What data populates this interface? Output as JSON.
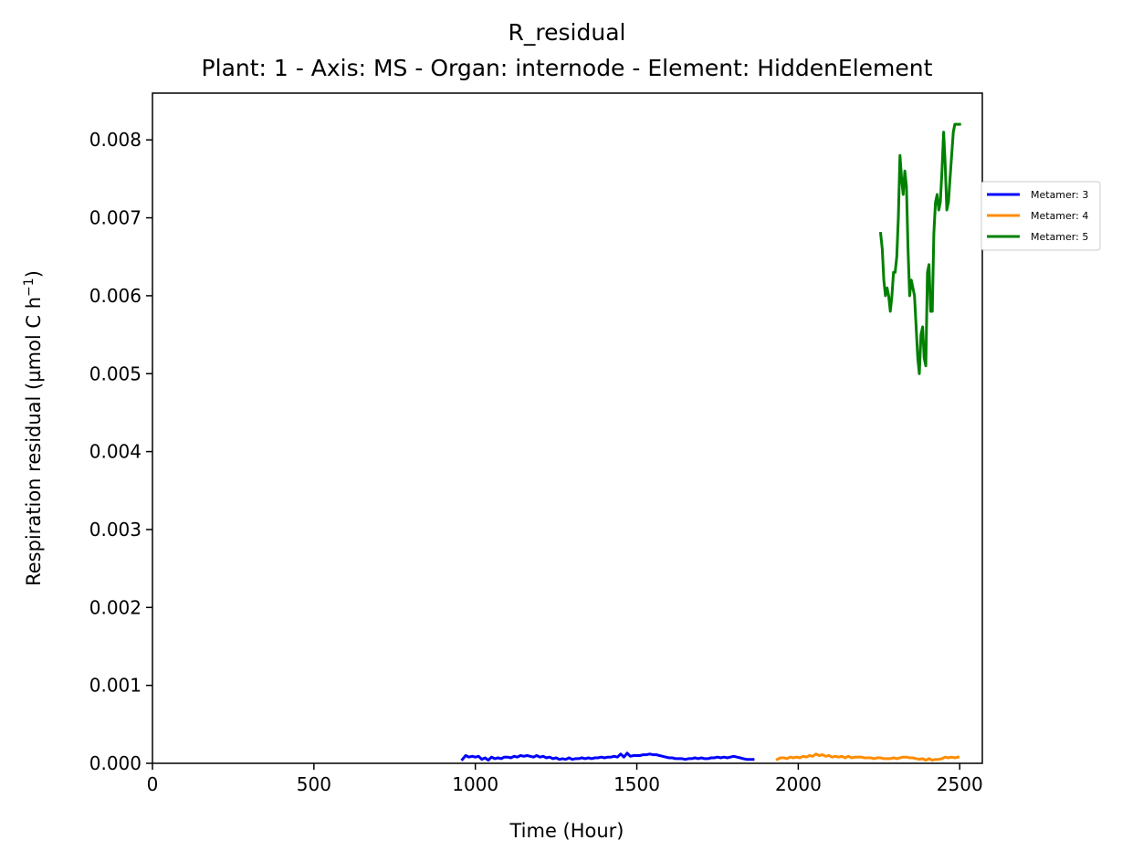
{
  "chart_data": {
    "type": "line",
    "title": "R_residual",
    "subtitle": "Plant: 1 - Axis: MS - Organ: internode - Element: HiddenElement",
    "xlabel": "Time (Hour)",
    "ylabel_main": "Respiration residual (µmol C h",
    "ylabel_sup": "−1",
    "ylabel_end": ")",
    "xlim": [
      0,
      2570
    ],
    "ylim": [
      0,
      0.0086
    ],
    "xticks": [
      0,
      500,
      1000,
      1500,
      2000,
      2500
    ],
    "xtick_labels": [
      "0",
      "500",
      "1000",
      "1500",
      "2000",
      "2500"
    ],
    "yticks": [
      0,
      0.001,
      0.002,
      0.003,
      0.004,
      0.005,
      0.006,
      0.007,
      0.008
    ],
    "ytick_labels": [
      "0.000",
      "0.001",
      "0.002",
      "0.003",
      "0.004",
      "0.005",
      "0.006",
      "0.007",
      "0.008"
    ],
    "grid": false,
    "legend_position": "outside-right",
    "series": [
      {
        "name": "Metamer: 3",
        "color": "#0000ff",
        "x": [
          960,
          970,
          980,
          990,
          1000,
          1010,
          1020,
          1030,
          1040,
          1050,
          1060,
          1070,
          1080,
          1090,
          1100,
          1110,
          1120,
          1130,
          1140,
          1150,
          1160,
          1170,
          1180,
          1190,
          1200,
          1210,
          1220,
          1230,
          1240,
          1250,
          1260,
          1270,
          1280,
          1290,
          1300,
          1310,
          1320,
          1330,
          1340,
          1350,
          1360,
          1370,
          1380,
          1390,
          1400,
          1410,
          1420,
          1430,
          1440,
          1450,
          1460,
          1470,
          1480,
          1490,
          1500,
          1510,
          1520,
          1530,
          1540,
          1550,
          1560,
          1570,
          1580,
          1590,
          1600,
          1610,
          1620,
          1630,
          1640,
          1650,
          1660,
          1670,
          1680,
          1690,
          1700,
          1710,
          1720,
          1730,
          1740,
          1750,
          1760,
          1770,
          1780,
          1790,
          1800,
          1810,
          1820,
          1830,
          1840,
          1850,
          1860
        ],
        "y": [
          5e-05,
          0.0001,
          8e-05,
          9e-05,
          8e-05,
          9e-05,
          5e-05,
          7e-05,
          4e-05,
          8e-05,
          6e-05,
          7e-05,
          6e-05,
          8e-05,
          8e-05,
          7e-05,
          9e-05,
          8e-05,
          0.0001,
          9e-05,
          0.0001,
          9e-05,
          8e-05,
          0.0001,
          8e-05,
          9e-05,
          7e-05,
          8e-05,
          6e-05,
          7e-05,
          5e-05,
          6e-05,
          5e-05,
          7e-05,
          5e-05,
          6e-05,
          6e-05,
          7e-05,
          6e-05,
          7e-05,
          6e-05,
          7e-05,
          7e-05,
          8e-05,
          7e-05,
          8e-05,
          8e-05,
          9e-05,
          8e-05,
          0.00012,
          8e-05,
          0.00013,
          9e-05,
          0.0001,
          0.0001,
          0.0001,
          0.00011,
          0.00011,
          0.00012,
          0.00011,
          0.00011,
          0.0001,
          9e-05,
          8e-05,
          7e-05,
          7e-05,
          6e-05,
          6e-05,
          6e-05,
          5e-05,
          6e-05,
          6e-05,
          7e-05,
          6e-05,
          7e-05,
          6e-05,
          6e-05,
          7e-05,
          7e-05,
          8e-05,
          7e-05,
          8e-05,
          7e-05,
          8e-05,
          9e-05,
          8e-05,
          7e-05,
          6e-05,
          5e-05,
          5e-05,
          5e-05
        ]
      },
      {
        "name": "Metamer: 4",
        "color": "#ff8c00",
        "x": [
          1935,
          1945,
          1955,
          1965,
          1975,
          1985,
          1995,
          2005,
          2015,
          2025,
          2035,
          2045,
          2055,
          2065,
          2075,
          2085,
          2095,
          2105,
          2115,
          2125,
          2135,
          2145,
          2155,
          2165,
          2175,
          2185,
          2195,
          2205,
          2215,
          2225,
          2235,
          2245,
          2255,
          2265,
          2275,
          2285,
          2295,
          2305,
          2315,
          2325,
          2335,
          2345,
          2355,
          2365,
          2375,
          2385,
          2395,
          2405,
          2415,
          2425,
          2435,
          2445,
          2455,
          2465,
          2475,
          2485,
          2495
        ],
        "y": [
          5e-05,
          7e-05,
          7e-05,
          6e-05,
          8e-05,
          7e-05,
          8e-05,
          7e-05,
          9e-05,
          8e-05,
          0.0001,
          9e-05,
          0.00012,
          0.0001,
          0.00011,
          9e-05,
          0.0001,
          8e-05,
          9e-05,
          8e-05,
          9e-05,
          7e-05,
          9e-05,
          7e-05,
          8e-05,
          8e-05,
          8e-05,
          7e-05,
          7e-05,
          7e-05,
          6e-05,
          7e-05,
          7e-05,
          6e-05,
          6e-05,
          6e-05,
          7e-05,
          6e-05,
          7e-05,
          8e-05,
          8e-05,
          7e-05,
          7e-05,
          6e-05,
          5e-05,
          6e-05,
          4e-05,
          6e-05,
          4e-05,
          5e-05,
          5e-05,
          6e-05,
          8e-05,
          7e-05,
          8e-05,
          7e-05,
          8e-05
        ]
      },
      {
        "name": "Metamer: 5",
        "color": "#008000",
        "x": [
          2255,
          2260,
          2265,
          2270,
          2275,
          2280,
          2285,
          2290,
          2295,
          2300,
          2305,
          2310,
          2315,
          2320,
          2325,
          2330,
          2335,
          2340,
          2345,
          2350,
          2355,
          2360,
          2365,
          2370,
          2375,
          2380,
          2385,
          2390,
          2395,
          2400,
          2405,
          2410,
          2415,
          2420,
          2425,
          2430,
          2435,
          2440,
          2445,
          2450,
          2455,
          2460,
          2465,
          2470,
          2475,
          2480,
          2485,
          2490,
          2495,
          2500
        ],
        "y": [
          0.0068,
          0.0066,
          0.0062,
          0.006,
          0.0061,
          0.006,
          0.0058,
          0.006,
          0.0063,
          0.0063,
          0.0065,
          0.007,
          0.0078,
          0.0075,
          0.0073,
          0.0076,
          0.0074,
          0.0066,
          0.006,
          0.0062,
          0.0061,
          0.006,
          0.0056,
          0.0052,
          0.005,
          0.0055,
          0.0056,
          0.0052,
          0.0051,
          0.0063,
          0.0064,
          0.0058,
          0.0058,
          0.0068,
          0.0072,
          0.0073,
          0.0071,
          0.0072,
          0.0076,
          0.0081,
          0.0077,
          0.0071,
          0.0072,
          0.0075,
          0.0078,
          0.0081,
          0.0082,
          0.0082,
          0.0082,
          0.0082
        ]
      }
    ]
  }
}
